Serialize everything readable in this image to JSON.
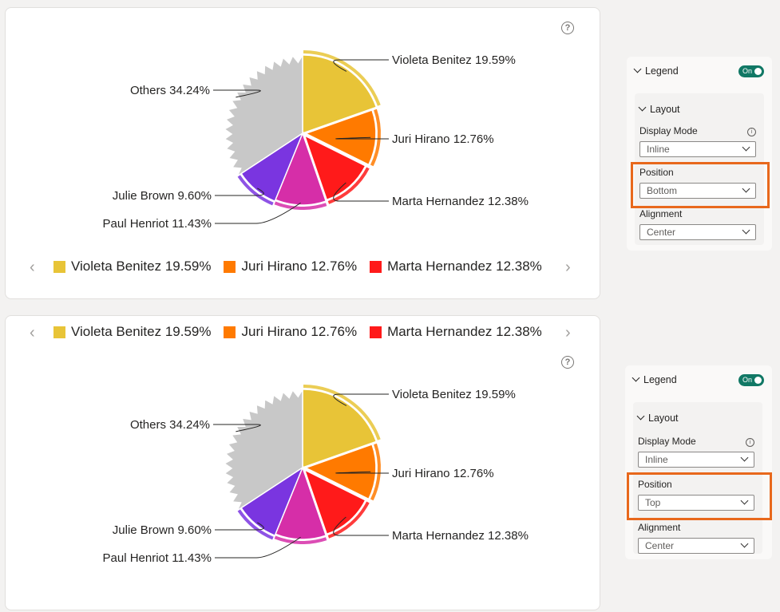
{
  "chart_data": [
    {
      "type": "pie",
      "legend_position": "bottom",
      "series": [
        {
          "name": "Violeta Benitez",
          "value": 19.59,
          "label": "Violeta Benitez 19.59%",
          "color": "#e8c437"
        },
        {
          "name": "Juri Hirano",
          "value": 12.76,
          "label": "Juri Hirano 12.76%",
          "color": "#ff7a00"
        },
        {
          "name": "Marta Hernandez",
          "value": 12.38,
          "label": "Marta Hernandez 12.38%",
          "color": "#ff1a1a"
        },
        {
          "name": "Paul Henriot",
          "value": 11.43,
          "label": "Paul Henriot 11.43%",
          "color": "#d62ea8"
        },
        {
          "name": "Julie Brown",
          "value": 9.6,
          "label": "Julie Brown 9.60%",
          "color": "#7a35e0"
        },
        {
          "name": "Others",
          "value": 34.24,
          "label": "Others 34.24%",
          "color": "#c8c8c8"
        }
      ]
    },
    {
      "type": "pie",
      "legend_position": "top",
      "series": [
        {
          "name": "Violeta Benitez",
          "value": 19.59,
          "label": "Violeta Benitez 19.59%",
          "color": "#e8c437"
        },
        {
          "name": "Juri Hirano",
          "value": 12.76,
          "label": "Juri Hirano 12.76%",
          "color": "#ff7a00"
        },
        {
          "name": "Marta Hernandez",
          "value": 12.38,
          "label": "Marta Hernandez 12.38%",
          "color": "#ff1a1a"
        },
        {
          "name": "Paul Henriot",
          "value": 11.43,
          "label": "Paul Henriot 11.43%",
          "color": "#d62ea8"
        },
        {
          "name": "Julie Brown",
          "value": 9.6,
          "label": "Julie Brown 9.60%",
          "color": "#7a35e0"
        },
        {
          "name": "Others",
          "value": 34.24,
          "label": "Others 34.24%",
          "color": "#c8c8c8"
        }
      ]
    }
  ],
  "legend": {
    "items": [
      {
        "label": "Violeta Benitez 19.59%",
        "color": "#e8c437"
      },
      {
        "label": "Juri Hirano 12.76%",
        "color": "#ff7a00"
      },
      {
        "label": "Marta Hernandez 12.38%",
        "color": "#ff1a1a"
      }
    ],
    "prev_arrow": "‹",
    "next_arrow": "›"
  },
  "help_icon": "?",
  "format_panels": [
    {
      "title": "Legend",
      "toggle": "On",
      "section": "Layout",
      "display_mode_label": "Display Mode",
      "display_mode_value": "Inline",
      "position_label": "Position",
      "position_value": "Bottom",
      "alignment_label": "Alignment",
      "alignment_value": "Center"
    },
    {
      "title": "Legend",
      "toggle": "On",
      "section": "Layout",
      "display_mode_label": "Display Mode",
      "display_mode_value": "Inline",
      "position_label": "Position",
      "position_value": "Top",
      "alignment_label": "Alignment",
      "alignment_value": "Center"
    }
  ],
  "colors": {
    "highlight": "#e8681c",
    "toggle": "#117865"
  }
}
